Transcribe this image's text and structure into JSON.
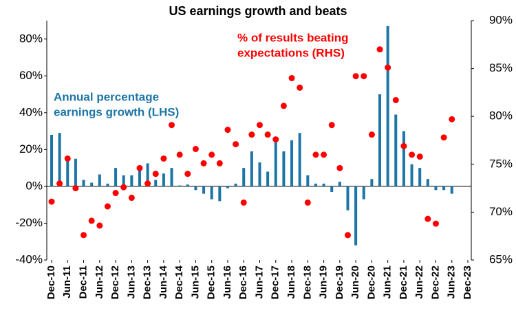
{
  "chart_data": {
    "type": "combo",
    "title": "US earnings growth and beats",
    "categories": [
      "Dec-10",
      null,
      "Jun-11",
      null,
      "Dec-11",
      null,
      "Jun-12",
      null,
      "Dec-12",
      null,
      "Jun-13",
      null,
      "Dec-13",
      null,
      "Jun-14",
      null,
      "Dec-14",
      null,
      "Jun-15",
      null,
      "Dec-15",
      null,
      "Jun-16",
      null,
      "Dec-16",
      null,
      "Jun-17",
      null,
      "Dec-17",
      null,
      "Jun-18",
      null,
      "Dec-18",
      null,
      "Jun-19",
      null,
      "Dec-19",
      null,
      "Jun-20",
      null,
      "Dec-20",
      null,
      "Jun-21",
      null,
      "Dec-21",
      null,
      "Jun-22",
      null,
      "Dec-22",
      null,
      "Jun-23",
      null,
      "Dec-23"
    ],
    "series": [
      {
        "name": [
          "Annual percentage",
          "earnings growth (LHS)"
        ],
        "type": "bar",
        "color": "#1b75a6",
        "values": [
          28,
          29,
          14,
          15,
          3.5,
          2,
          6.5,
          1.5,
          10,
          6,
          6,
          9,
          12.5,
          3.5,
          7,
          10,
          0.5,
          1,
          -2,
          -4,
          -7,
          -8,
          -1,
          1.5,
          10,
          19,
          13,
          8,
          24,
          19,
          25,
          29,
          6,
          1.5,
          1.5,
          -3,
          2.5,
          -13,
          -32,
          -7,
          4,
          50,
          87,
          39,
          30,
          12,
          10,
          4,
          -2,
          -2,
          -4,
          null,
          null
        ]
      },
      {
        "name": [
          "% of results beating",
          "expectations (RHS)"
        ],
        "type": "scatter",
        "axis": "y2",
        "color": "#ff0000",
        "values": [
          71.1,
          73,
          75.6,
          72.5,
          67.6,
          69.1,
          68.6,
          70.6,
          72,
          72.6,
          71.5,
          74.6,
          73,
          74,
          75.6,
          79.1,
          76,
          74,
          76.6,
          75.1,
          76,
          75.1,
          78.6,
          77.1,
          71,
          78.1,
          79.1,
          78.1,
          77.6,
          81.1,
          84,
          83,
          71,
          76,
          76,
          79.1,
          74.6,
          67.6,
          84.2,
          84.2,
          78.1,
          87,
          85.1,
          81.7,
          76.9,
          76,
          75.8,
          69.3,
          68.8,
          77.8,
          79.7,
          null,
          null
        ]
      }
    ],
    "ylim": [
      -40,
      90
    ],
    "yticks": [
      {
        "value": -40,
        "label": "-40%"
      },
      {
        "value": -20,
        "label": "-20%"
      },
      {
        "value": 0,
        "label": "0%"
      },
      {
        "value": 20,
        "label": "20%"
      },
      {
        "value": 40,
        "label": "40%"
      },
      {
        "value": 60,
        "label": "60%"
      },
      {
        "value": 80,
        "label": "80%"
      }
    ],
    "y2lim": [
      65,
      90
    ],
    "y2ticks": [
      {
        "value": 65,
        "label": "65%"
      },
      {
        "value": 70,
        "label": "70%"
      },
      {
        "value": 75,
        "label": "75%"
      },
      {
        "value": 80,
        "label": "80%"
      },
      {
        "value": 85,
        "label": "85%"
      },
      {
        "value": 90,
        "label": "90%"
      }
    ],
    "grid": false
  }
}
